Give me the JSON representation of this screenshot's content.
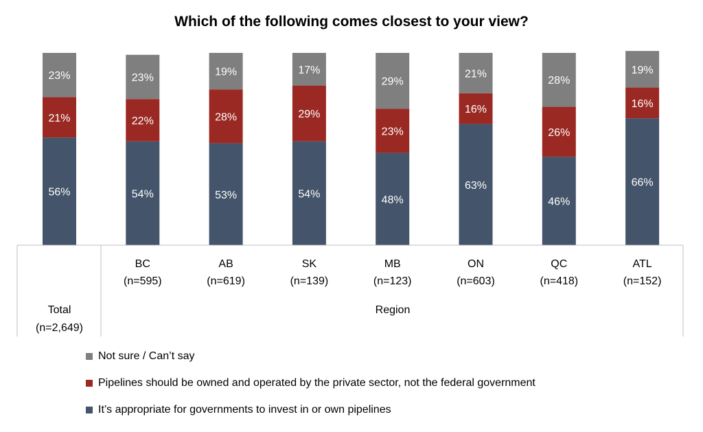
{
  "chart_data": {
    "type": "bar",
    "stacked": true,
    "title": "Which of the following comes closest to your view?",
    "categories": [
      {
        "name": "Total",
        "n": "(n=2,649)"
      },
      {
        "name": "BC",
        "n": "(n=595)"
      },
      {
        "name": "AB",
        "n": "(n=619)"
      },
      {
        "name": "SK",
        "n": "(n=139)"
      },
      {
        "name": "MB",
        "n": "(n=123)"
      },
      {
        "name": "ON",
        "n": "(n=603)"
      },
      {
        "name": "QC",
        "n": "(n=418)"
      },
      {
        "name": "ATL",
        "n": "(n=152)"
      }
    ],
    "group_label": "Region",
    "series": [
      {
        "name": "It’s appropriate for governments to invest in or own pipelines",
        "color": "#44546A",
        "values": [
          56,
          54,
          53,
          54,
          48,
          63,
          46,
          66
        ]
      },
      {
        "name": "Pipelines should be owned and operated by the private sector, not the federal government",
        "color": "#9B2923",
        "values": [
          21,
          22,
          28,
          29,
          23,
          16,
          26,
          16
        ]
      },
      {
        "name": "Not sure / Can’t say",
        "color": "#7F7F7F",
        "values": [
          23,
          23,
          19,
          17,
          29,
          21,
          28,
          19
        ]
      }
    ],
    "value_suffix": "%",
    "legend_order": [
      2,
      1,
      0
    ],
    "legend_position": "bottom-left"
  }
}
